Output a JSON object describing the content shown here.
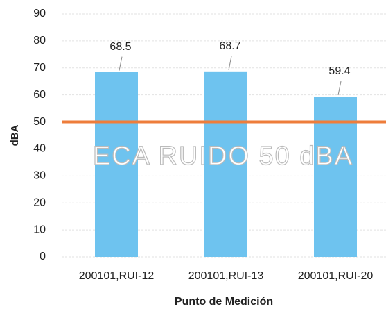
{
  "chart_data": {
    "type": "bar",
    "categories": [
      "200101,RUI-12",
      "200101,RUI-13",
      "200101,RUI-20"
    ],
    "values": [
      68.5,
      68.7,
      59.4
    ],
    "color": "#6ec3ef",
    "ylim": [
      0,
      90
    ],
    "yticks": [
      0,
      10,
      20,
      30,
      40,
      50,
      60,
      70,
      80,
      90
    ],
    "grid": true,
    "y_label": "dBA",
    "x_label": "Punto de Medición",
    "threshold": {
      "value": 50,
      "color": "#ee7d3b",
      "label": "ECA RUIDO 50 dBA"
    }
  }
}
